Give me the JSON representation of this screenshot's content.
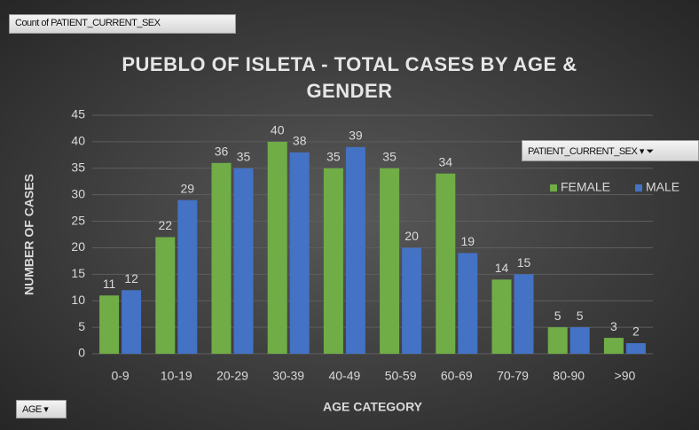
{
  "chart_data": {
    "type": "bar",
    "title": "PUEBLO OF ISLETA - TOTAL CASES BY AGE & GENDER",
    "x_label": "AGE CATEGORY",
    "y_label": "NUMBER OF CASES",
    "categories": [
      "0-9",
      "10-19",
      "20-29",
      "30-39",
      "40-49",
      "50-59",
      "60-69",
      "70-79",
      "80-90",
      ">90"
    ],
    "series": [
      {
        "name": "FEMALE",
        "color": "#70ad47",
        "values": [
          11,
          22,
          36,
          40,
          35,
          35,
          34,
          14,
          5,
          3
        ]
      },
      {
        "name": "MALE",
        "color": "#4472c4",
        "values": [
          12,
          29,
          35,
          38,
          39,
          20,
          19,
          15,
          5,
          2
        ]
      }
    ],
    "ylim": [
      0,
      45
    ],
    "yticks": [
      0,
      5,
      10,
      15,
      20,
      25,
      30,
      35,
      40,
      45
    ],
    "grid": true,
    "legend": "right",
    "field_buttons": {
      "values_field": "Count of PATIENT_CURRENT_SEX",
      "legend_field": "PATIENT_CURRENT_SEX",
      "axis_field": "AGE"
    }
  }
}
